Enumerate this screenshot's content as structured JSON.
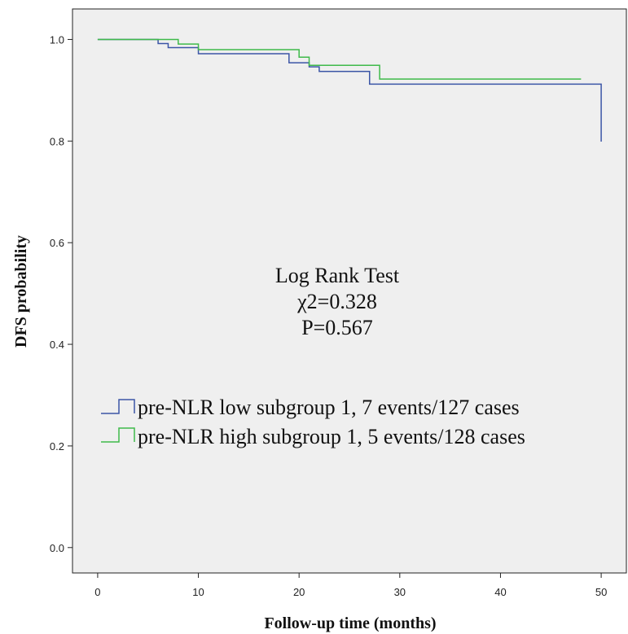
{
  "chart_data": {
    "type": "line",
    "subtype": "kaplan-meier step",
    "xlabel": "Follow-up time (months)",
    "ylabel": "DFS probability",
    "xlim": [
      -2.5,
      52.5
    ],
    "ylim": [
      -0.05,
      1.06
    ],
    "x_ticks": [
      0,
      10,
      20,
      30,
      40,
      50
    ],
    "y_ticks": [
      0.0,
      0.2,
      0.4,
      0.6,
      0.8,
      1.0
    ],
    "x_tick_labels": [
      "0",
      "10",
      "20",
      "30",
      "40",
      "50"
    ],
    "y_tick_labels": [
      "0.0",
      "0.2",
      "0.4",
      "0.6",
      "0.8",
      "1.0"
    ],
    "grid": false,
    "legend_position": "middle-left",
    "annotation": [
      "Log Rank Test",
      "χ2=0.328",
      "P=0.567"
    ],
    "series": [
      {
        "name": "pre-NLR low subgroup 1, 7 events/127 cases",
        "color": "#3b55a6",
        "x": [
          0,
          6,
          7,
          10,
          19,
          21,
          22,
          27,
          43,
          50
        ],
        "y": [
          1.0,
          0.992,
          0.984,
          0.972,
          0.954,
          0.946,
          0.937,
          0.912,
          0.912,
          0.799
        ]
      },
      {
        "name": "pre-NLR high subgroup 1, 5 events/128 cases",
        "color": "#3fba4a",
        "x": [
          0,
          8,
          10,
          20,
          21,
          28,
          48
        ],
        "y": [
          1.0,
          0.991,
          0.98,
          0.965,
          0.949,
          0.922,
          0.922
        ]
      }
    ]
  },
  "background_color": "#efefef"
}
